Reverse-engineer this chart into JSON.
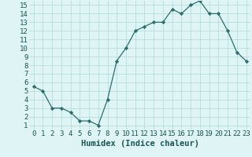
{
  "x": [
    0,
    1,
    2,
    3,
    4,
    5,
    6,
    7,
    8,
    9,
    10,
    11,
    12,
    13,
    14,
    15,
    16,
    17,
    18,
    19,
    20,
    21,
    22,
    23
  ],
  "y": [
    5.5,
    5.0,
    3.0,
    3.0,
    2.5,
    1.5,
    1.5,
    1.0,
    4.0,
    8.5,
    10.0,
    12.0,
    12.5,
    13.0,
    13.0,
    14.5,
    14.0,
    15.0,
    15.5,
    14.0,
    14.0,
    12.0,
    9.5,
    8.5
  ],
  "xlabel": "Humidex (Indice chaleur)",
  "xlim": [
    -0.5,
    23.5
  ],
  "ylim": [
    0.5,
    15.5
  ],
  "yticks": [
    1,
    2,
    3,
    4,
    5,
    6,
    7,
    8,
    9,
    10,
    11,
    12,
    13,
    14,
    15
  ],
  "xticks": [
    0,
    1,
    2,
    3,
    4,
    5,
    6,
    7,
    8,
    9,
    10,
    11,
    12,
    13,
    14,
    15,
    16,
    17,
    18,
    19,
    20,
    21,
    22,
    23
  ],
  "line_color": "#2d6e6e",
  "marker": "D",
  "marker_size": 2.2,
  "bg_color": "#dff4f4",
  "grid_color": "#aed8d8",
  "xlabel_color": "#1a5555",
  "xlabel_fontsize": 7.5,
  "tick_fontsize": 6.5,
  "tick_color": "#1a5555"
}
